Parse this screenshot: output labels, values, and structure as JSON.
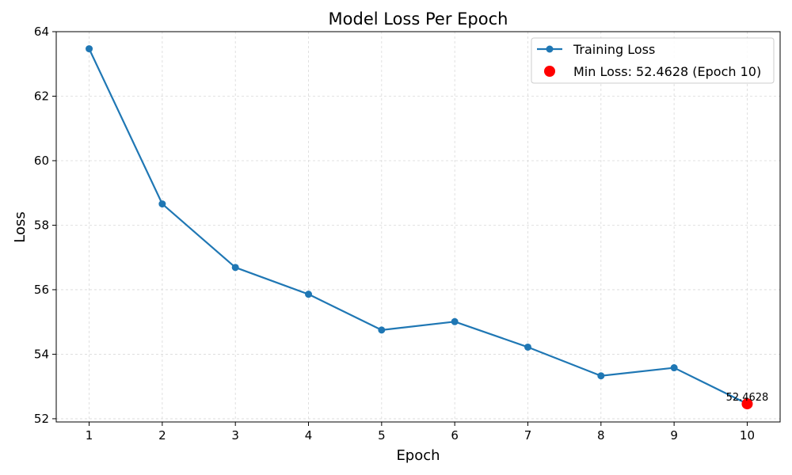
{
  "chart_data": {
    "type": "line",
    "title": "Model Loss Per Epoch",
    "xlabel": "Epoch",
    "ylabel": "Loss",
    "x": [
      1,
      2,
      3,
      4,
      5,
      6,
      7,
      8,
      9,
      10
    ],
    "xlim": [
      0.55,
      10.45
    ],
    "ylim": [
      51.9,
      64.0
    ],
    "yticks": [
      52,
      54,
      56,
      58,
      60,
      62,
      64
    ],
    "grid": true,
    "legend_position": "top-right",
    "series": [
      {
        "name": "Training Loss",
        "color": "#1f77b4",
        "values": [
          63.47,
          58.66,
          56.69,
          55.86,
          54.75,
          55.01,
          54.22,
          53.33,
          53.58,
          52.4628
        ]
      }
    ],
    "highlight": {
      "name": "Min Loss: 52.4628 (Epoch 10)",
      "x": 10,
      "y": 52.4628,
      "label": "52.4628",
      "color": "#ff0000"
    }
  }
}
